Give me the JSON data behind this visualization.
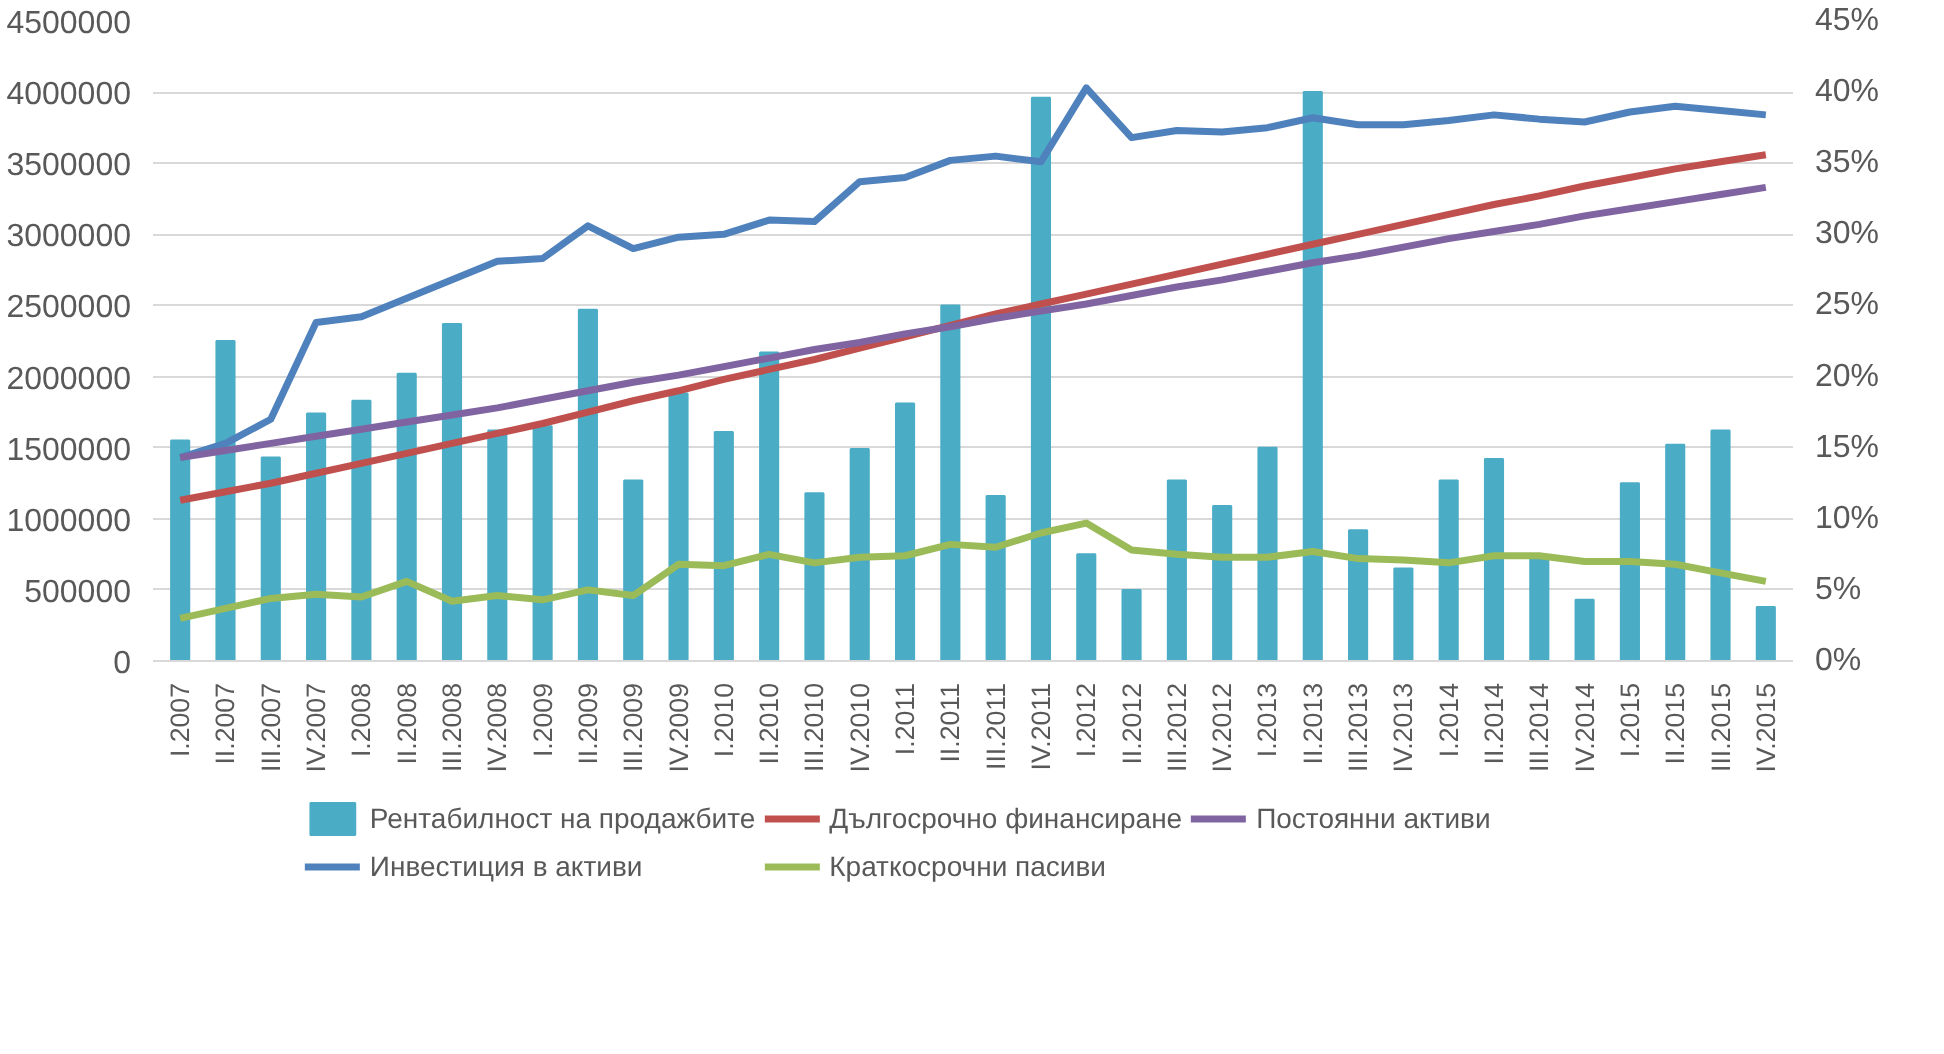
{
  "chart_data": {
    "type": "line",
    "categories": [
      "I.2007",
      "II.2007",
      "III.2007",
      "IV.2007",
      "I.2008",
      "II.2008",
      "III.2008",
      "IV.2008",
      "I.2009",
      "II.2009",
      "III.2009",
      "IV.2009",
      "I.2010",
      "II.2010",
      "III.2010",
      "IV.2010",
      "I.2011",
      "II.2011",
      "III.2011",
      "IV.2011",
      "I.2012",
      "II.2012",
      "III.2012",
      "IV.2012",
      "I.2013",
      "II.2013",
      "III.2013",
      "IV.2013",
      "I.2014",
      "II.2014",
      "III.2014",
      "IV.2014",
      "I.2015",
      "II.2015",
      "III.2015",
      "IV.2015"
    ],
    "series": [
      {
        "name": "Рентабилност на продажбите",
        "type": "bar",
        "axis": "y2",
        "color": "#4bacc6",
        "values": [
          15.5,
          22.5,
          14.3,
          17.4,
          18.3,
          20.2,
          23.7,
          16.2,
          16.5,
          24.7,
          12.7,
          18.8,
          16.1,
          21.7,
          11.8,
          14.9,
          18.1,
          25.0,
          11.6,
          39.6,
          7.5,
          5.0,
          12.7,
          10.9,
          15.0,
          40.0,
          9.2,
          6.5,
          12.7,
          14.2,
          7.4,
          4.3,
          12.5,
          15.2,
          16.2,
          3.8
        ]
      },
      {
        "name": "Инвестиция в активи",
        "color": "#4f81bd",
        "values": [
          1430000,
          1530000,
          1700000,
          2380000,
          2420000,
          2550000,
          2680000,
          2810000,
          2830000,
          3060000,
          2900000,
          2980000,
          3000000,
          3100000,
          3090000,
          3370000,
          3400000,
          3520000,
          3550000,
          3510000,
          4030000,
          3680000,
          3730000,
          3720000,
          3750000,
          3820000,
          3770000,
          3770000,
          3800000,
          3840000,
          3810000,
          3790000,
          3860000,
          3900000,
          3870000,
          3840000
        ]
      },
      {
        "name": "Дългосрочно финансиране",
        "color": "#c0504d",
        "values": [
          1130000,
          1190000,
          1250000,
          1320000,
          1390000,
          1460000,
          1530000,
          1600000,
          1670000,
          1750000,
          1830000,
          1900000,
          1980000,
          2050000,
          2120000,
          2200000,
          2280000,
          2360000,
          2440000,
          2510000,
          2580000,
          2650000,
          2720000,
          2790000,
          2860000,
          2930000,
          3000000,
          3070000,
          3140000,
          3210000,
          3270000,
          3340000,
          3400000,
          3460000,
          3510000,
          3560000
        ]
      },
      {
        "name": "Краткосрочни пасиви",
        "color": "#9bbb59",
        "values": [
          300000,
          370000,
          440000,
          470000,
          450000,
          560000,
          420000,
          460000,
          430000,
          500000,
          460000,
          680000,
          670000,
          750000,
          690000,
          730000,
          740000,
          820000,
          800000,
          900000,
          970000,
          780000,
          750000,
          730000,
          730000,
          770000,
          720000,
          710000,
          690000,
          740000,
          740000,
          700000,
          700000,
          680000,
          620000,
          560000
        ]
      },
      {
        "name": "Постоянни активи",
        "color": "#8064a2",
        "values": [
          1430000,
          1480000,
          1530000,
          1580000,
          1630000,
          1680000,
          1730000,
          1780000,
          1840000,
          1900000,
          1960000,
          2010000,
          2070000,
          2130000,
          2190000,
          2240000,
          2300000,
          2350000,
          2410000,
          2460000,
          2510000,
          2570000,
          2630000,
          2680000,
          2740000,
          2800000,
          2850000,
          2910000,
          2970000,
          3020000,
          3070000,
          3130000,
          3180000,
          3230000,
          3280000,
          3330000
        ]
      }
    ],
    "ylim": [
      0,
      4500000
    ],
    "yticks": [
      0,
      500000,
      1000000,
      1500000,
      2000000,
      2500000,
      3000000,
      3500000,
      4000000,
      4500000
    ],
    "y2lim": [
      0,
      45
    ],
    "y2ticks": [
      {
        "value": 0,
        "label": "0%"
      },
      {
        "value": 5,
        "label": "5%"
      },
      {
        "value": 10,
        "label": "10%"
      },
      {
        "value": 15,
        "label": "15%"
      },
      {
        "value": 20,
        "label": "20%"
      },
      {
        "value": 25,
        "label": "25%"
      },
      {
        "value": 30,
        "label": "30%"
      },
      {
        "value": 35,
        "label": "35%"
      },
      {
        "value": 40,
        "label": "40%"
      },
      {
        "value": 45,
        "label": "45%"
      }
    ],
    "grid": "y",
    "legend": "bottom"
  }
}
